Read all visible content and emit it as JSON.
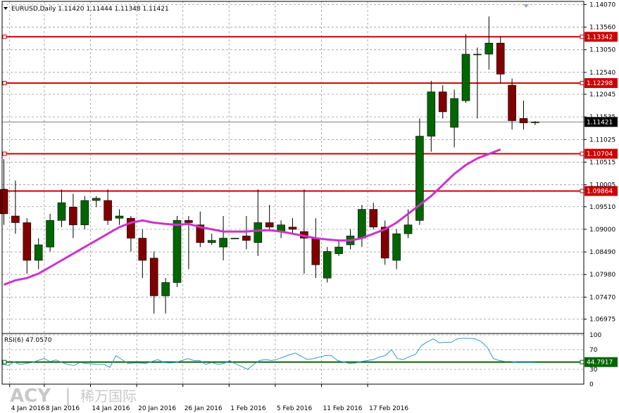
{
  "title": "EURUSD,Daily  1.11420 1.11444 1.11348 1.11421",
  "watermark": {
    "brand": "ACY",
    "separator": "|",
    "chinese": "稀万国际"
  },
  "chart_data": {
    "type": "candlestick",
    "symbol": "EURUSD",
    "timeframe": "Daily",
    "ohlc_header": {
      "open": 1.1142,
      "high": 1.11444,
      "low": 1.11348,
      "close": 1.11421
    },
    "ylim": [
      1.0665,
      1.1414
    ],
    "y_ticks": [
      "1.14070",
      "1.13560",
      "1.13050",
      "1.12540",
      "1.12045",
      "1.11535",
      "1.11025",
      "1.10515",
      "1.10005",
      "1.09510",
      "1.09000",
      "1.08490",
      "1.07980",
      "1.07470",
      "1.06975"
    ],
    "x_ticks": [
      "4 Jan 2016",
      "8 Jan 2016",
      "14 Jan 2016",
      "20 Jan 2016",
      "26 Jan 2016",
      "1 Feb 2016",
      "5 Feb 2016",
      "11 Feb 2016",
      "17 Feb 2016"
    ],
    "x_tick_positions": [
      0.5,
      3.5,
      7.5,
      11.5,
      15.5,
      19.5,
      23.5,
      27.5,
      31.5
    ],
    "candles": [
      {
        "o": 1.099,
        "h": 1.1058,
        "l": 1.091,
        "c": 1.0935
      },
      {
        "o": 1.093,
        "h": 1.101,
        "l": 1.089,
        "c": 1.0915
      },
      {
        "o": 1.0915,
        "h": 1.0925,
        "l": 1.08,
        "c": 1.083
      },
      {
        "o": 1.083,
        "h": 1.088,
        "l": 1.081,
        "c": 1.0865
      },
      {
        "o": 1.086,
        "h": 1.0935,
        "l": 1.085,
        "c": 1.092
      },
      {
        "o": 1.092,
        "h": 1.099,
        "l": 1.0905,
        "c": 1.096
      },
      {
        "o": 1.095,
        "h": 1.098,
        "l": 1.088,
        "c": 1.091
      },
      {
        "o": 1.091,
        "h": 1.0975,
        "l": 1.09,
        "c": 1.0965
      },
      {
        "o": 1.0965,
        "h": 1.0975,
        "l": 1.095,
        "c": 1.097
      },
      {
        "o": 1.0965,
        "h": 1.099,
        "l": 1.091,
        "c": 1.092
      },
      {
        "o": 1.0925,
        "h": 1.0945,
        "l": 1.091,
        "c": 1.093
      },
      {
        "o": 1.0925,
        "h": 1.093,
        "l": 1.085,
        "c": 1.088
      },
      {
        "o": 1.088,
        "h": 1.09,
        "l": 1.079,
        "c": 1.083
      },
      {
        "o": 1.0835,
        "h": 1.085,
        "l": 1.071,
        "c": 1.075
      },
      {
        "o": 1.075,
        "h": 1.079,
        "l": 1.071,
        "c": 1.078
      },
      {
        "o": 1.078,
        "h": 1.093,
        "l": 1.077,
        "c": 1.092
      },
      {
        "o": 1.092,
        "h": 1.093,
        "l": 1.081,
        "c": 1.0915
      },
      {
        "o": 1.091,
        "h": 1.094,
        "l": 1.086,
        "c": 1.087
      },
      {
        "o": 1.087,
        "h": 1.089,
        "l": 1.0865,
        "c": 1.0875
      },
      {
        "o": 1.086,
        "h": 1.093,
        "l": 1.083,
        "c": 1.088
      },
      {
        "o": 1.088,
        "h": 1.088,
        "l": 1.088,
        "c": 1.088
      },
      {
        "o": 1.0885,
        "h": 1.093,
        "l": 1.0855,
        "c": 1.0875
      },
      {
        "o": 1.087,
        "h": 1.099,
        "l": 1.084,
        "c": 1.0915
      },
      {
        "o": 1.0915,
        "h": 1.0955,
        "l": 1.0895,
        "c": 1.0905
      },
      {
        "o": 1.0895,
        "h": 1.092,
        "l": 1.088,
        "c": 1.091
      },
      {
        "o": 1.0905,
        "h": 1.0925,
        "l": 1.089,
        "c": 1.09
      },
      {
        "o": 1.0895,
        "h": 1.099,
        "l": 1.08,
        "c": 1.088
      },
      {
        "o": 1.088,
        "h": 1.0925,
        "l": 1.079,
        "c": 1.082
      },
      {
        "o": 1.079,
        "h": 1.086,
        "l": 1.078,
        "c": 1.085
      },
      {
        "o": 1.0845,
        "h": 1.0875,
        "l": 1.084,
        "c": 1.086
      },
      {
        "o": 1.0865,
        "h": 1.09,
        "l": 1.0855,
        "c": 1.0885
      },
      {
        "o": 1.088,
        "h": 1.0955,
        "l": 1.086,
        "c": 1.0945
      },
      {
        "o": 1.0945,
        "h": 1.096,
        "l": 1.09,
        "c": 1.0905
      },
      {
        "o": 1.0905,
        "h": 1.092,
        "l": 1.082,
        "c": 1.0835
      },
      {
        "o": 1.083,
        "h": 1.09,
        "l": 1.081,
        "c": 1.089
      },
      {
        "o": 1.089,
        "h": 1.0945,
        "l": 1.088,
        "c": 1.091
      },
      {
        "o": 1.092,
        "h": 1.115,
        "l": 1.091,
        "c": 1.111
      },
      {
        "o": 1.111,
        "h": 1.1235,
        "l": 1.1075,
        "c": 1.121
      },
      {
        "o": 1.121,
        "h": 1.1225,
        "l": 1.115,
        "c": 1.1165
      },
      {
        "o": 1.113,
        "h": 1.1215,
        "l": 1.1085,
        "c": 1.1195
      },
      {
        "o": 1.119,
        "h": 1.134,
        "l": 1.1185,
        "c": 1.1295
      },
      {
        "o": 1.1295,
        "h": 1.131,
        "l": 1.115,
        "c": 1.1295
      },
      {
        "o": 1.1295,
        "h": 1.138,
        "l": 1.126,
        "c": 1.132
      },
      {
        "o": 1.132,
        "h": 1.1335,
        "l": 1.123,
        "c": 1.125
      },
      {
        "o": 1.1225,
        "h": 1.124,
        "l": 1.1125,
        "c": 1.1145
      },
      {
        "o": 1.115,
        "h": 1.119,
        "l": 1.1125,
        "c": 1.114
      },
      {
        "o": 1.1142,
        "h": 1.1144,
        "l": 1.1135,
        "c": 1.1142
      }
    ],
    "ma_line": [
      1.0775,
      1.0785,
      1.079,
      1.08,
      1.0815,
      1.083,
      1.0845,
      1.086,
      1.0875,
      1.089,
      1.0905,
      1.0915,
      1.092,
      1.0915,
      1.0912,
      1.091,
      1.0912,
      1.0905,
      1.09,
      1.0895,
      1.0895,
      1.0895,
      1.0897,
      1.0898,
      1.0895,
      1.089,
      1.0885,
      1.088,
      1.0877,
      1.0875,
      1.0875,
      1.088,
      1.089,
      1.09,
      1.0915,
      1.0935,
      1.0955,
      1.0975,
      1.1,
      1.1025,
      1.1045,
      1.106,
      1.107,
      1.108
    ],
    "horizontal_levels": [
      {
        "value": 1.13342,
        "label": "1.13342",
        "color": "#cc0000"
      },
      {
        "value": 1.12298,
        "label": "1.12298",
        "color": "#cc0000"
      },
      {
        "value": 1.10704,
        "label": "1.10704",
        "color": "#cc0000"
      },
      {
        "value": 1.09864,
        "label": "1.09864",
        "color": "#cc0000"
      }
    ],
    "current_price": {
      "value": 1.11421,
      "label": "1.11421"
    },
    "rsi": {
      "label": "RSI(6) 47.0570",
      "ylim": [
        0,
        100
      ],
      "y_ticks": [
        "100",
        "70",
        "30",
        "0"
      ],
      "level": {
        "value": 44.7917,
        "label": "44.7917",
        "color": "#006600"
      },
      "values": [
        40,
        38,
        45,
        40,
        42,
        44,
        48,
        52,
        46,
        49,
        44,
        40,
        38,
        44,
        42,
        41,
        40,
        40,
        34,
        58,
        50,
        42,
        43,
        43,
        42,
        46,
        50,
        44,
        43,
        44,
        48,
        52,
        48,
        48,
        40,
        44,
        40,
        42,
        48,
        41,
        36,
        30,
        40,
        48,
        50,
        48,
        51,
        55,
        60,
        63,
        56,
        50,
        52,
        55,
        58,
        58,
        48,
        45,
        42,
        43,
        46,
        48,
        50,
        55,
        58,
        70,
        52,
        50,
        56,
        60,
        78,
        86,
        92,
        84,
        85,
        85,
        92,
        93,
        93,
        92,
        86,
        75,
        52,
        48,
        46,
        46,
        44,
        44,
        44,
        44
      ]
    },
    "colors": {
      "bull": "#006600",
      "bear": "#800000",
      "ma": "#cc33cc",
      "rsi": "#3399cc",
      "background": "#ffffff"
    }
  }
}
